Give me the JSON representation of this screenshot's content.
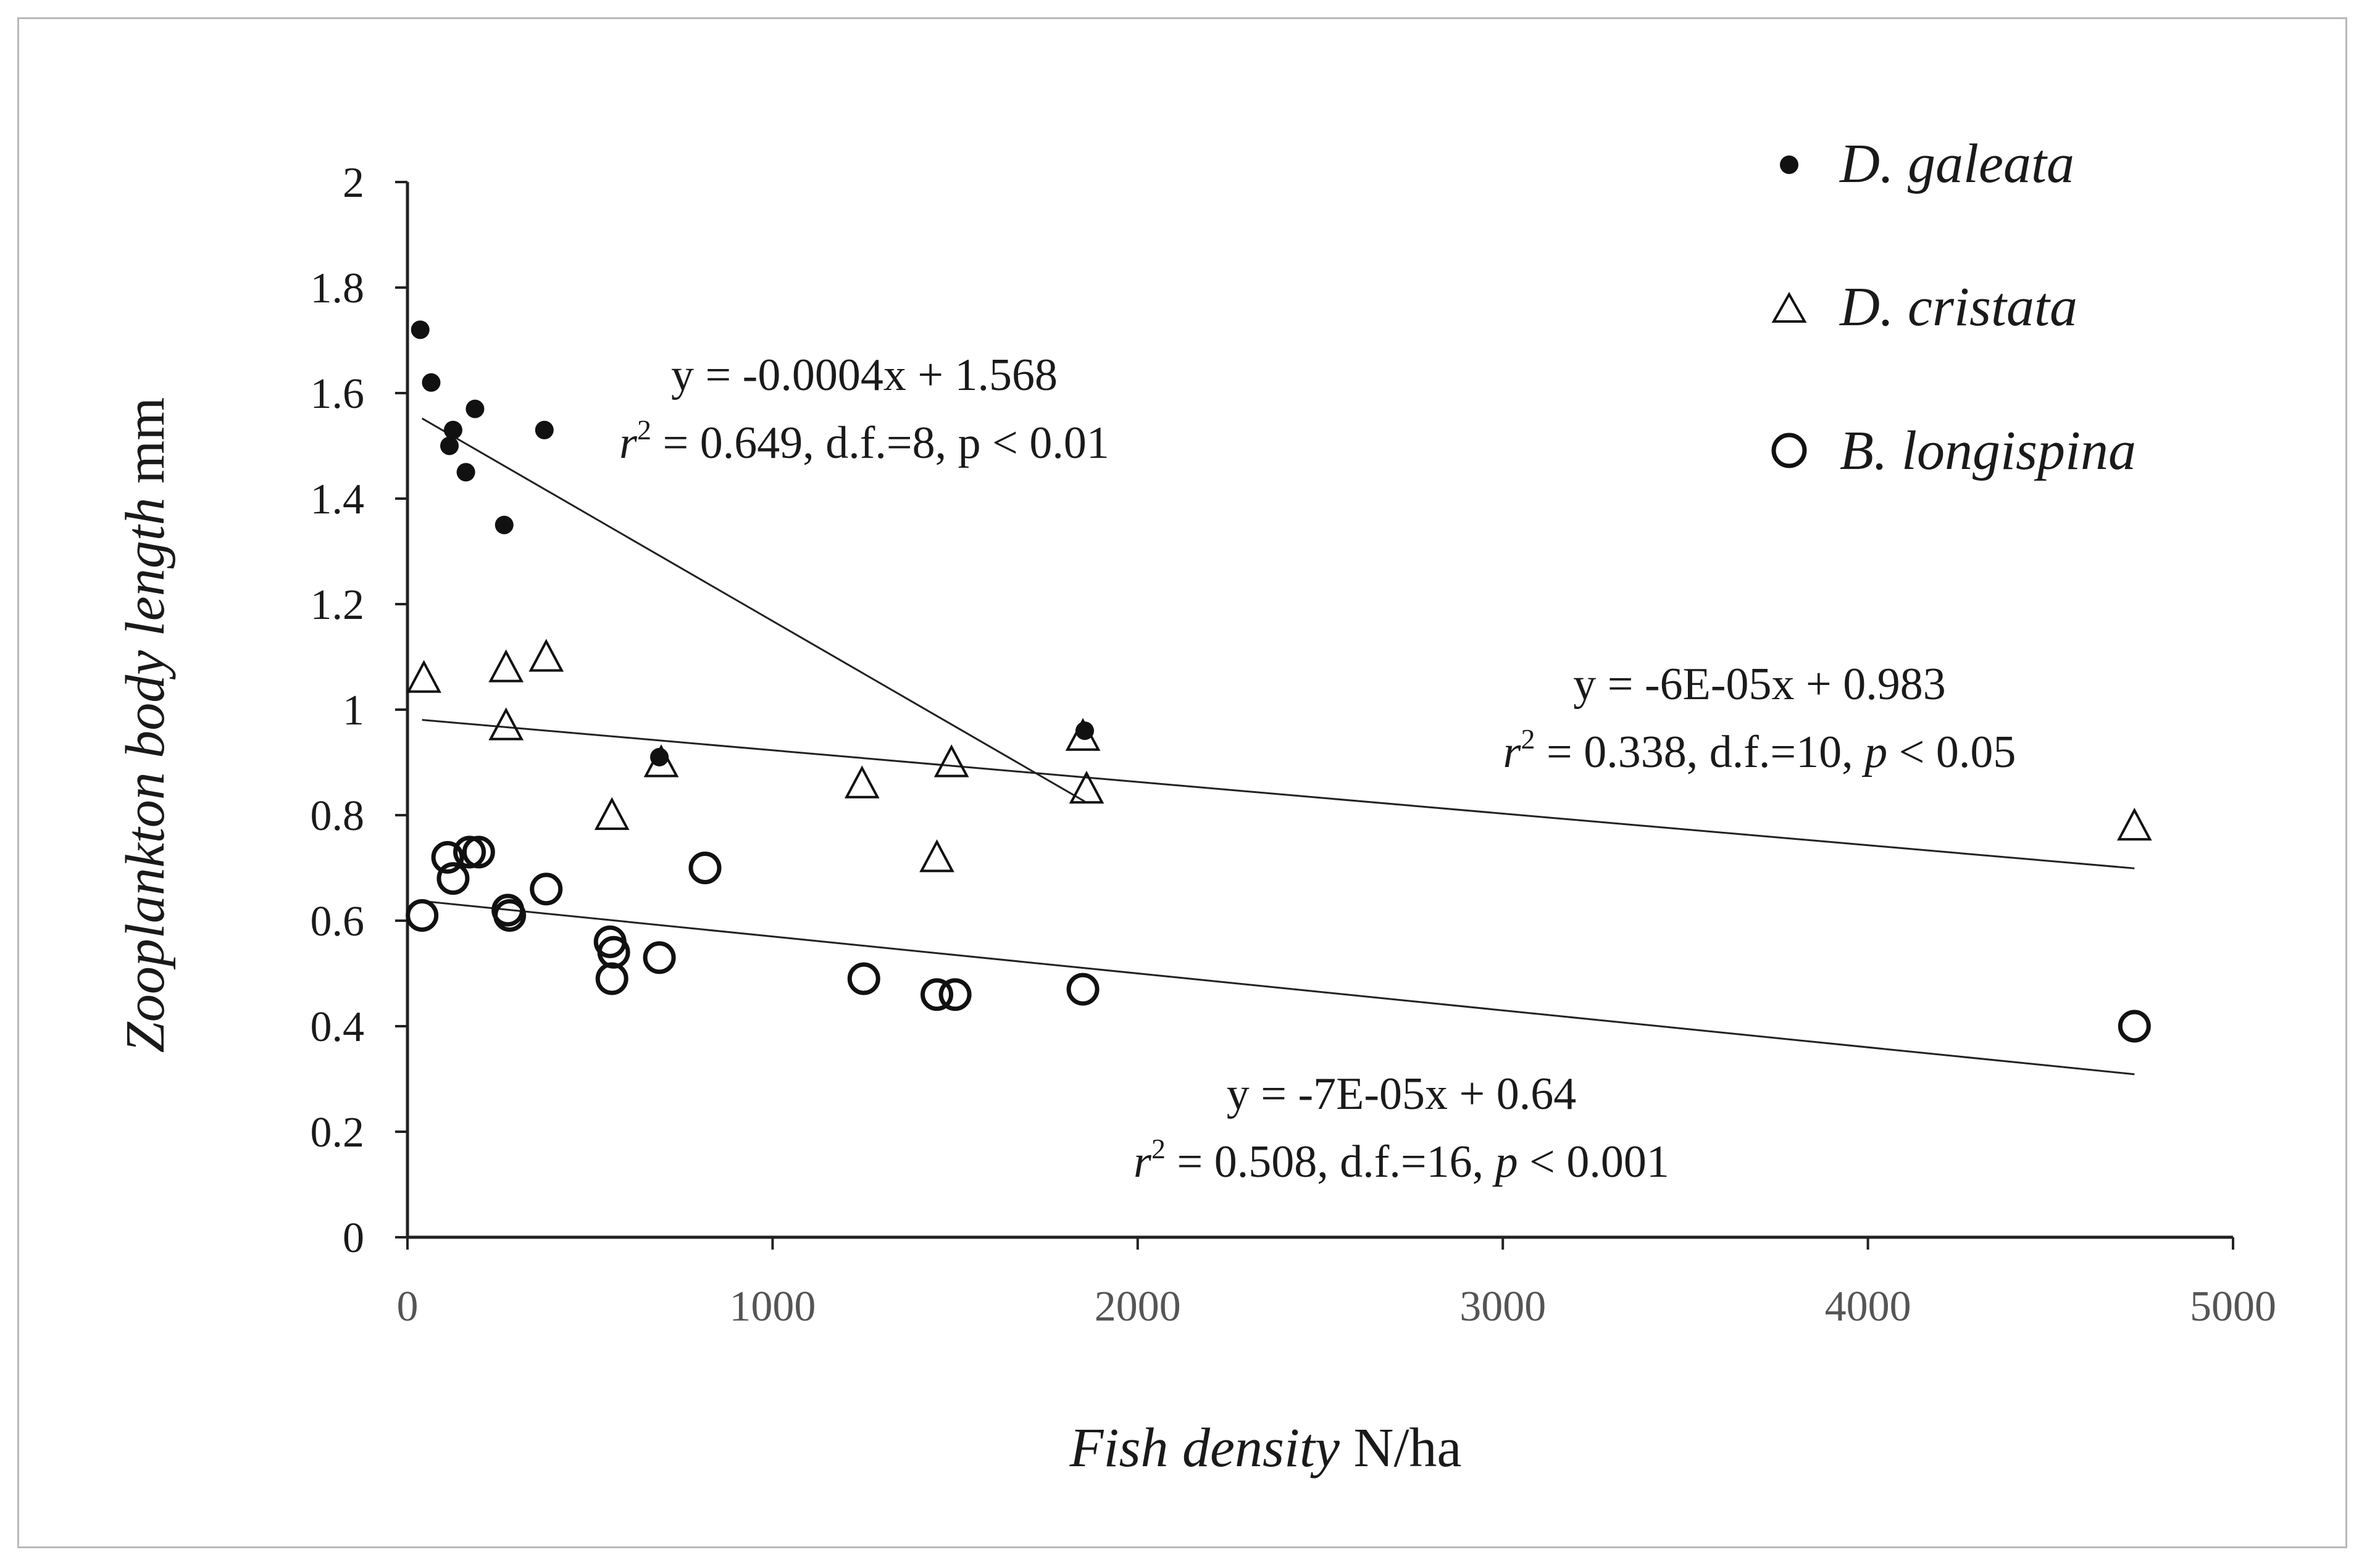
{
  "chart_data": {
    "type": "scatter",
    "xlabel": {
      "italic": "Fish density",
      "plain": "N/ha"
    },
    "ylabel": {
      "italic": "Zooplankton body length",
      "plain": "mm"
    },
    "xlim": [
      0,
      5000
    ],
    "ylim": [
      0,
      2
    ],
    "xticks": [
      0,
      1000,
      2000,
      3000,
      4000,
      5000
    ],
    "xtick_labels": [
      "0",
      "1000",
      "2000",
      "3000",
      "4000",
      "5000"
    ],
    "yticks": [
      0,
      0.2,
      0.4,
      0.6,
      0.8,
      1,
      1.2,
      1.4,
      1.6,
      1.8,
      2
    ],
    "ytick_labels": [
      "0",
      "0.2",
      "0.4",
      "0.6",
      "0.8",
      "1",
      "1.2",
      "1.4",
      "1.6",
      "1.8",
      "2"
    ],
    "grid": false,
    "legend_position": "top-right",
    "series": [
      {
        "name": "D. galeata",
        "marker": "filled-circle",
        "color": "#111111",
        "x": [
          35,
          65,
          115,
          125,
          160,
          185,
          265,
          375,
          690,
          1855
        ],
        "y": [
          1.72,
          1.62,
          1.5,
          1.53,
          1.45,
          1.57,
          1.35,
          1.53,
          0.91,
          0.96
        ],
        "trendline": {
          "slope": -0.0004,
          "intercept": 1.568,
          "x_range": [
            40,
            1855
          ],
          "equation": "y = -0.0004x + 1.568",
          "stats": {
            "r2_symbol": "r",
            "r2_sup": "2",
            "r2_value": " = 0.649,  d.f.=8, p < 0.01"
          }
        }
      },
      {
        "name": "D. cristata",
        "marker": "open-triangle",
        "color": "#111111",
        "x": [
          45,
          270,
          270,
          380,
          560,
          695,
          1245,
          1450,
          1490,
          1850,
          1860,
          4730
        ],
        "y": [
          1.06,
          1.08,
          0.97,
          1.1,
          0.8,
          0.9,
          0.86,
          0.72,
          0.9,
          0.95,
          0.85,
          0.78
        ],
        "trendline": {
          "slope": -6e-05,
          "intercept": 0.983,
          "x_range": [
            40,
            4730
          ],
          "equation": "y = -6E-05x + 0.983",
          "stats": {
            "r2_symbol": "r",
            "r2_sup": "2",
            "r2_value": " = 0.338,  d.f.=10,  ",
            "p_symbol": "p",
            "p_value": " < 0.05"
          }
        }
      },
      {
        "name": "B. longispina",
        "marker": "open-circle",
        "color": "#111111",
        "x": [
          40,
          110,
          125,
          170,
          195,
          275,
          280,
          380,
          555,
          560,
          565,
          690,
          815,
          1250,
          1450,
          1500,
          1850,
          4730
        ],
        "y": [
          0.61,
          0.72,
          0.68,
          0.73,
          0.73,
          0.62,
          0.61,
          0.66,
          0.56,
          0.49,
          0.54,
          0.53,
          0.7,
          0.49,
          0.46,
          0.46,
          0.47,
          0.4
        ],
        "trendline": {
          "slope": -7e-05,
          "intercept": 0.64,
          "x_range": [
            40,
            4730
          ],
          "equation": "y = -7E-05x + 0.64",
          "stats": {
            "r2_symbol": "r",
            "r2_sup": "2",
            "r2_value": " = 0.508, d.f.=16,  ",
            "p_symbol": "p",
            "p_value": " < 0.001"
          }
        }
      }
    ]
  }
}
